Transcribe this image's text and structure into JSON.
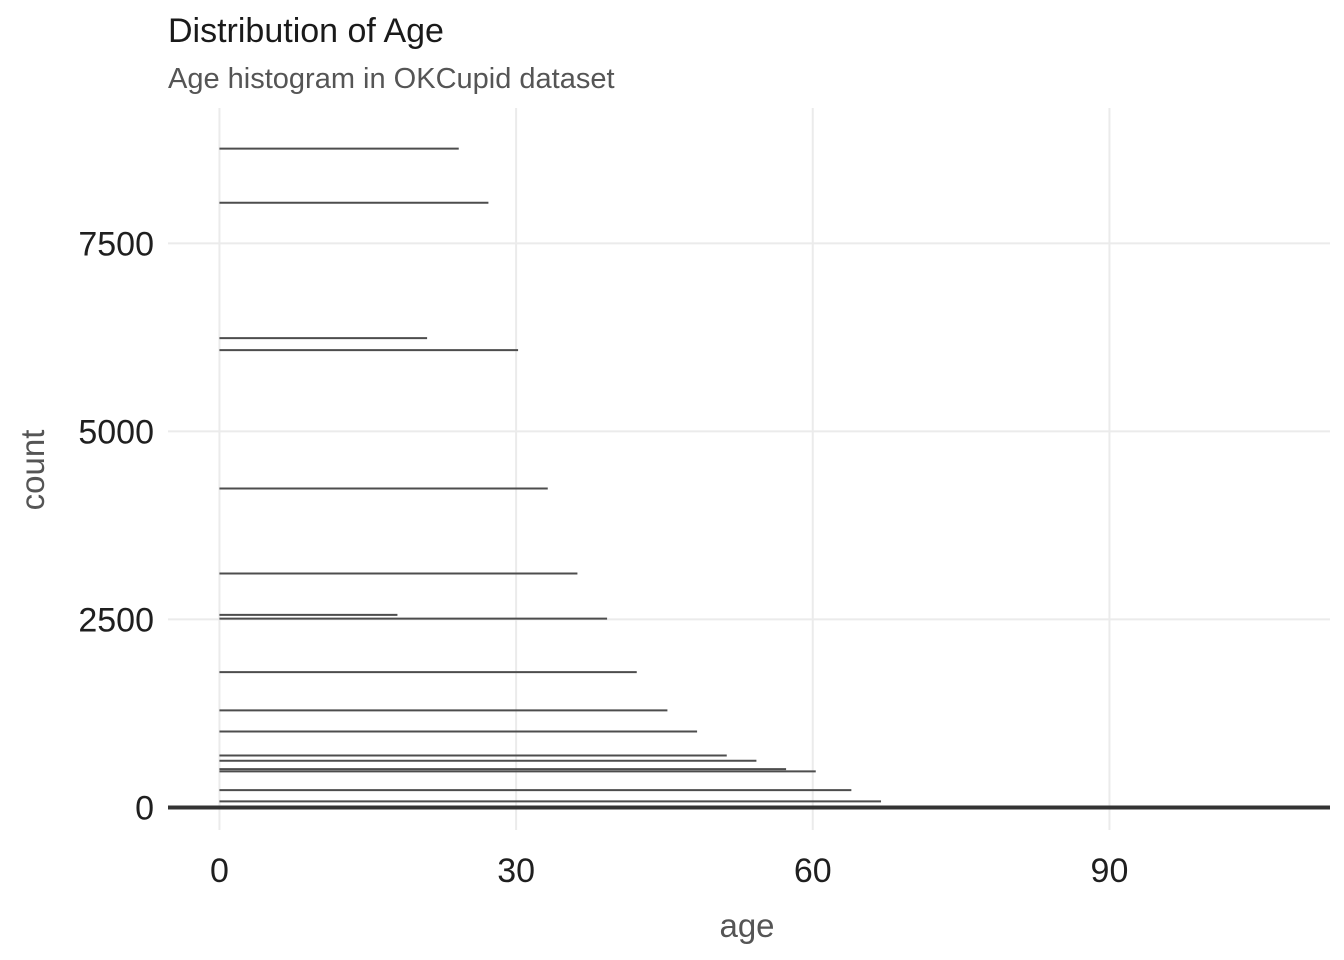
{
  "chart_data": {
    "type": "bar",
    "title": "Distribution of Age",
    "subtitle": "Age histogram in OKCupid dataset",
    "xlabel": "age",
    "ylabel": "count",
    "xlim": [
      -5.2,
      112.3
    ],
    "ylim": [
      -300,
      9300
    ],
    "x_ticks": [
      0,
      30,
      60,
      90
    ],
    "y_ticks": [
      0,
      2500,
      5000,
      7500
    ],
    "grid": true,
    "segments": [
      {
        "x_start": 0,
        "x_end": 24.2,
        "count": 8760
      },
      {
        "x_start": 0,
        "x_end": 27.2,
        "count": 8040
      },
      {
        "x_start": 0,
        "x_end": 21.0,
        "count": 6240
      },
      {
        "x_start": 0,
        "x_end": 30.2,
        "count": 6080
      },
      {
        "x_start": 0,
        "x_end": 33.2,
        "count": 4240
      },
      {
        "x_start": 0,
        "x_end": 36.2,
        "count": 3110
      },
      {
        "x_start": 0,
        "x_end": 18.0,
        "count": 2560
      },
      {
        "x_start": 0,
        "x_end": 39.2,
        "count": 2510
      },
      {
        "x_start": 0,
        "x_end": 42.2,
        "count": 1800
      },
      {
        "x_start": 0,
        "x_end": 45.3,
        "count": 1290
      },
      {
        "x_start": 0,
        "x_end": 48.3,
        "count": 1010
      },
      {
        "x_start": 0,
        "x_end": 51.3,
        "count": 690
      },
      {
        "x_start": 0,
        "x_end": 54.3,
        "count": 620
      },
      {
        "x_start": 0,
        "x_end": 57.3,
        "count": 510
      },
      {
        "x_start": 0,
        "x_end": 60.3,
        "count": 480
      },
      {
        "x_start": 0,
        "x_end": 63.9,
        "count": 230
      },
      {
        "x_start": 0,
        "x_end": 66.9,
        "count": 80
      },
      {
        "x_start": -5.2,
        "x_end": 112.3,
        "count": 0
      }
    ],
    "colors": {
      "segment": "#4d4d4d",
      "baseline": "#333333",
      "grid": "#ebebeb"
    }
  }
}
